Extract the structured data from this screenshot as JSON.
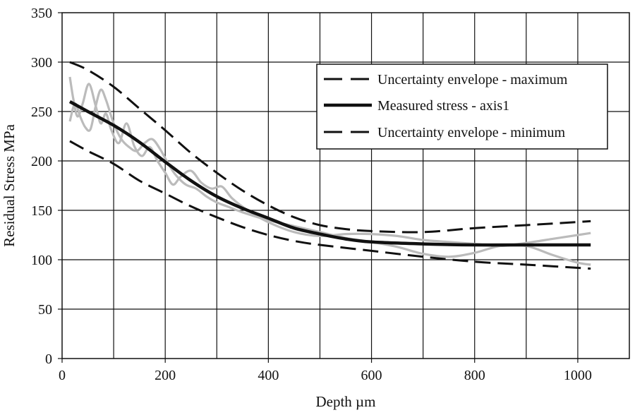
{
  "chart_data": {
    "type": "line",
    "xlabel": "Depth µm",
    "ylabel": "Residual Stress MPa",
    "xlim": [
      0,
      1100
    ],
    "ylim": [
      0,
      350
    ],
    "xticks": [
      0,
      200,
      400,
      600,
      800,
      1000
    ],
    "yticks": [
      0,
      50,
      100,
      150,
      200,
      250,
      300,
      350
    ],
    "x_grid_step": 100,
    "grid": true,
    "legend_position": "top-right",
    "series": [
      {
        "name": "Uncertainty envelope - maximum",
        "style": "dashed",
        "color": "#111111",
        "points": [
          [
            15,
            300
          ],
          [
            50,
            292
          ],
          [
            100,
            275
          ],
          [
            150,
            253
          ],
          [
            200,
            231
          ],
          [
            250,
            208
          ],
          [
            300,
            188
          ],
          [
            350,
            170
          ],
          [
            400,
            155
          ],
          [
            450,
            143
          ],
          [
            500,
            135
          ],
          [
            550,
            131
          ],
          [
            600,
            129
          ],
          [
            700,
            128
          ],
          [
            800,
            132
          ],
          [
            900,
            135
          ],
          [
            1025,
            139
          ]
        ]
      },
      {
        "name": "Measured stress - axis1",
        "style": "solid-thick",
        "color": "#111111",
        "points": [
          [
            15,
            260
          ],
          [
            50,
            250
          ],
          [
            100,
            236
          ],
          [
            150,
            219
          ],
          [
            200,
            199
          ],
          [
            250,
            180
          ],
          [
            300,
            164
          ],
          [
            350,
            152
          ],
          [
            400,
            142
          ],
          [
            450,
            132
          ],
          [
            500,
            126
          ],
          [
            550,
            121
          ],
          [
            600,
            118
          ],
          [
            700,
            116
          ],
          [
            800,
            115
          ],
          [
            900,
            115
          ],
          [
            1025,
            115
          ]
        ]
      },
      {
        "name": "Uncertainty envelope - minimum",
        "style": "dashed",
        "color": "#111111",
        "points": [
          [
            15,
            220
          ],
          [
            50,
            210
          ],
          [
            100,
            197
          ],
          [
            150,
            180
          ],
          [
            200,
            167
          ],
          [
            250,
            154
          ],
          [
            300,
            143
          ],
          [
            350,
            133
          ],
          [
            400,
            125
          ],
          [
            450,
            119
          ],
          [
            500,
            115
          ],
          [
            600,
            109
          ],
          [
            700,
            103
          ],
          [
            800,
            98
          ],
          [
            900,
            95
          ],
          [
            1025,
            91
          ]
        ]
      },
      {
        "style": "solid-gray",
        "color": "#bbbbbb",
        "points": [
          [
            15,
            285
          ],
          [
            22,
            262
          ],
          [
            30,
            245
          ],
          [
            40,
            258
          ],
          [
            52,
            278
          ],
          [
            65,
            256
          ],
          [
            75,
            238
          ],
          [
            85,
            248
          ],
          [
            95,
            232
          ],
          [
            110,
            218
          ],
          [
            125,
            238
          ],
          [
            140,
            215
          ],
          [
            155,
            205
          ],
          [
            170,
            214
          ],
          [
            185,
            200
          ],
          [
            200,
            188
          ],
          [
            215,
            176
          ],
          [
            230,
            184
          ],
          [
            250,
            190
          ],
          [
            270,
            178
          ],
          [
            290,
            172
          ],
          [
            310,
            174
          ],
          [
            330,
            162
          ],
          [
            360,
            150
          ],
          [
            400,
            138
          ],
          [
            450,
            128
          ],
          [
            500,
            124
          ],
          [
            550,
            126
          ],
          [
            600,
            126
          ],
          [
            650,
            124
          ],
          [
            700,
            120
          ],
          [
            750,
            118
          ],
          [
            800,
            116
          ],
          [
            850,
            114
          ],
          [
            900,
            117
          ],
          [
            950,
            121
          ],
          [
            1000,
            125
          ],
          [
            1025,
            127
          ]
        ]
      },
      {
        "style": "solid-gray",
        "color": "#bbbbbb",
        "points": [
          [
            15,
            240
          ],
          [
            25,
            258
          ],
          [
            35,
            245
          ],
          [
            45,
            234
          ],
          [
            55,
            232
          ],
          [
            65,
            255
          ],
          [
            75,
            272
          ],
          [
            85,
            262
          ],
          [
            100,
            238
          ],
          [
            115,
            222
          ],
          [
            130,
            214
          ],
          [
            145,
            210
          ],
          [
            160,
            218
          ],
          [
            175,
            222
          ],
          [
            190,
            212
          ],
          [
            205,
            198
          ],
          [
            220,
            186
          ],
          [
            240,
            176
          ],
          [
            260,
            172
          ],
          [
            280,
            164
          ],
          [
            300,
            158
          ],
          [
            320,
            154
          ],
          [
            350,
            148
          ],
          [
            400,
            140
          ],
          [
            450,
            134
          ],
          [
            500,
            128
          ],
          [
            550,
            122
          ],
          [
            600,
            118
          ],
          [
            650,
            113
          ],
          [
            700,
            106
          ],
          [
            750,
            103
          ],
          [
            800,
            107
          ],
          [
            850,
            114
          ],
          [
            900,
            114
          ],
          [
            950,
            105
          ],
          [
            1000,
            97
          ],
          [
            1025,
            95
          ]
        ]
      }
    ]
  }
}
